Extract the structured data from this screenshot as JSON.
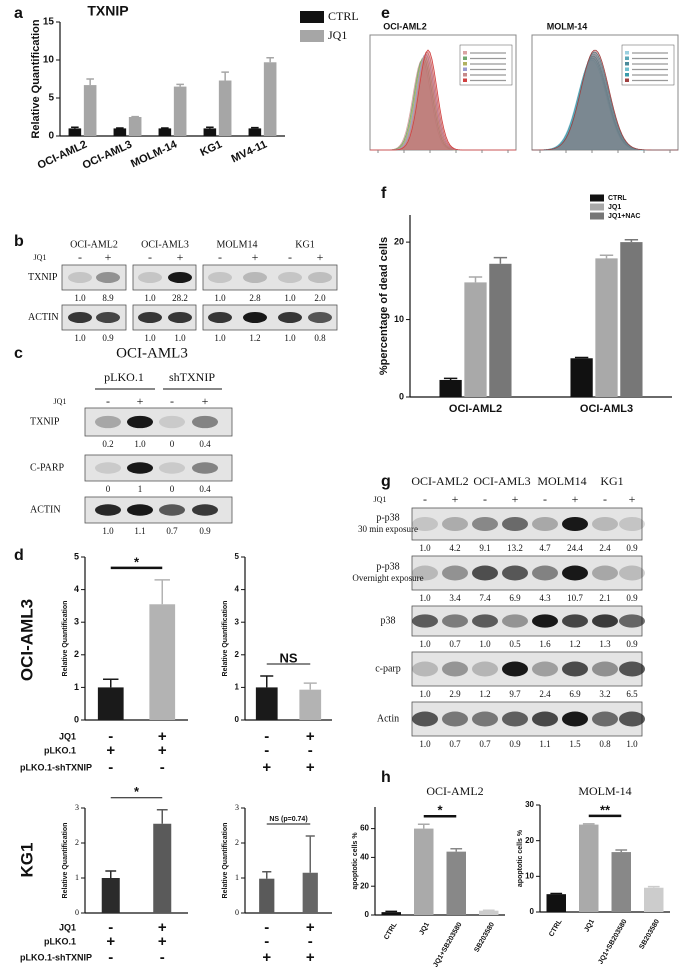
{
  "panel_labels": [
    "a",
    "b",
    "c",
    "d",
    "e",
    "f",
    "g",
    "h"
  ],
  "chart_data": [
    {
      "type": "bar",
      "title": "TXNIP",
      "y_label": "Relative Quantification",
      "categories": [
        "OCI-AML2",
        "OCI-AML3",
        "MOLM-14",
        "KG1",
        "MV4-11"
      ],
      "series": [
        {
          "name": "CTRL",
          "color": "#111111",
          "values": [
            1,
            1,
            1,
            1,
            1
          ],
          "errors": [
            0.15,
            0.05,
            0.05,
            0.15,
            0.1
          ]
        },
        {
          "name": "JQ1",
          "color": "#a6a6a6",
          "values": [
            6.7,
            2.5,
            6.5,
            7.3,
            9.7
          ],
          "errors": [
            0.8,
            0.05,
            0.3,
            1.1,
            0.6
          ]
        }
      ],
      "ylim": [
        0,
        15
      ],
      "yticks": [
        0,
        5,
        10,
        15
      ],
      "legend": "outside-right"
    },
    {
      "type": "bar",
      "y_label": "%percentage of dead cells",
      "categories": [
        "OCI-AML2",
        "OCI-AML3"
      ],
      "series": [
        {
          "name": "CTRL",
          "color": "#111111",
          "values": [
            2.2,
            5.0
          ],
          "errors": [
            0.2,
            0.1
          ]
        },
        {
          "name": "JQ1",
          "color": "#a9a9a9",
          "values": [
            14.8,
            17.9
          ],
          "errors": [
            0.7,
            0.4
          ]
        },
        {
          "name": "JQ1+NAC",
          "color": "#777777",
          "values": [
            17.2,
            20.0
          ],
          "errors": [
            0.8,
            0.3
          ]
        }
      ],
      "ylim": [
        0,
        23.5
      ],
      "yticks": [
        0,
        10,
        20
      ],
      "legend": "top-right"
    },
    {
      "type": "bar",
      "y_label": "Relative Quantification",
      "categories": [
        null,
        null
      ],
      "values": [
        1.0,
        3.55
      ],
      "errors": [
        0.25,
        0.75
      ],
      "colors": [
        "#1a1a1a",
        "#b3b3b3"
      ],
      "ylim": [
        0,
        5
      ],
      "yticks": [
        0,
        1,
        2,
        3,
        4,
        5
      ],
      "annotation": "*"
    },
    {
      "type": "bar",
      "y_label": "Relative Quantification",
      "categories": [
        null,
        null
      ],
      "values": [
        1.0,
        0.93
      ],
      "errors": [
        0.35,
        0.2
      ],
      "colors": [
        "#1a1a1a",
        "#b3b3b3"
      ],
      "ylim": [
        0,
        5
      ],
      "yticks": [
        0,
        1,
        2,
        3,
        4,
        5
      ],
      "annotation": "NS"
    },
    {
      "type": "bar",
      "y_label": "Relative Quantification",
      "categories": [
        null,
        null
      ],
      "values": [
        1.0,
        2.55
      ],
      "errors": [
        0.2,
        0.4
      ],
      "colors": [
        "#2b2b2b",
        "#5a5a5a"
      ],
      "ylim": [
        0,
        3
      ],
      "yticks": [
        0,
        1,
        2,
        3
      ],
      "annotation": "*"
    },
    {
      "type": "bar",
      "y_label": "Relative Quantification",
      "categories": [
        null,
        null
      ],
      "values": [
        0.98,
        1.15
      ],
      "errors": [
        0.2,
        1.05
      ],
      "colors": [
        "#5a5a5a",
        "#666666"
      ],
      "ylim": [
        0,
        3
      ],
      "yticks": [
        0,
        1,
        2,
        3
      ],
      "annotation": "NS (p=0.74)"
    },
    {
      "type": "bar",
      "title": "OCI-AML2",
      "y_label": "apoptotic cells %",
      "categories": [
        "CTRL",
        "JQ1",
        "JQ1+SB203580",
        "SB203580"
      ],
      "values": [
        2,
        60,
        44,
        3
      ],
      "errors": [
        0.5,
        3,
        2,
        0.3
      ],
      "colors": [
        "#111111",
        "#aaaaaa",
        "#888888",
        "#cccccc"
      ],
      "ylim": [
        0,
        75
      ],
      "yticks": [
        0,
        20,
        40,
        60
      ],
      "annotation": "*"
    },
    {
      "type": "bar",
      "title": "MOLM-14",
      "y_label": "apoptotic cells %",
      "categories": [
        "CTRL",
        "JQ1",
        "JQ1+SB203580",
        "SB203580"
      ],
      "values": [
        5,
        24.5,
        16.8,
        6.8
      ],
      "errors": [
        0.2,
        0.2,
        0.6,
        0.3
      ],
      "colors": [
        "#111111",
        "#aaaaaa",
        "#888888",
        "#cccccc"
      ],
      "ylim": [
        0,
        30
      ],
      "yticks": [
        0,
        10,
        20,
        30
      ],
      "annotation": "**"
    }
  ],
  "panel_d": {
    "row_labels": [
      "OCI-AML3",
      "KG1"
    ],
    "treatment_labels": [
      "JQ1",
      "pLKO.1",
      "pLKO.1-shTXNIP"
    ],
    "signs": [
      [
        [
          "-",
          "+"
        ],
        [
          "+",
          "+"
        ],
        [
          "-",
          "-"
        ]
      ],
      [
        [
          "-",
          "+"
        ],
        [
          "-",
          "-"
        ],
        [
          "+",
          "+"
        ]
      ],
      [
        [
          "-",
          "+"
        ],
        [
          "+",
          "+"
        ],
        [
          "-",
          "-"
        ]
      ],
      [
        [
          "-",
          "+"
        ],
        [
          "-",
          "-"
        ],
        [
          "+",
          "+"
        ]
      ]
    ]
  },
  "panel_e": {
    "titles": [
      "OCI-AML2",
      "MOLM-14"
    ]
  },
  "blots": [
    {
      "cell_lines": [
        "OCI-AML2",
        "OCI-AML3",
        "MOLM14",
        "KG1"
      ],
      "treatment": "JQ1",
      "signs": [
        "-",
        "+",
        "-",
        "+",
        "-",
        "+",
        "-",
        "+"
      ],
      "rows": [
        {
          "name": [
            "TXNIP"
          ],
          "quant": [
            "1.0",
            "8.9",
            "1.0",
            "28.2",
            "1.0",
            "2.8",
            "1.0",
            "2.0"
          ]
        },
        {
          "name": [
            "ACTIN"
          ],
          "quant": [
            "1.0",
            "0.9",
            "1.0",
            "1.0",
            "1.0",
            "1.2",
            "1.0",
            "0.8"
          ]
        }
      ]
    },
    {
      "title": "OCI-AML3",
      "groups": [
        "pLKO.1",
        "shTXNIP"
      ],
      "treatment": "JQ1",
      "signs": [
        "-",
        "+",
        "-",
        "+"
      ],
      "rows": [
        {
          "name": [
            "TXNIP"
          ],
          "quant": [
            "0.2",
            "1.0",
            "0",
            "0.4"
          ]
        },
        {
          "name": [
            "C-PARP"
          ],
          "quant": [
            "0",
            "1",
            "0",
            "0.4"
          ]
        },
        {
          "name": [
            "ACTIN"
          ],
          "quant": [
            "1.0",
            "1.1",
            "0.7",
            "0.9"
          ]
        }
      ]
    },
    {
      "cell_lines": [
        "OCI-AML2",
        "OCI-AML3",
        "MOLM14",
        "KG1"
      ],
      "treatment": "JQ1",
      "signs": [
        "-",
        "+",
        "-",
        "+",
        "-",
        "+",
        "-",
        "+"
      ],
      "rows": [
        {
          "name": [
            "p-p38",
            "30 min exposure"
          ],
          "quant": [
            "1.0",
            "4.2",
            "9.1",
            "13.2",
            "4.7",
            "24.4",
            "2.4",
            "0.9"
          ]
        },
        {
          "name": [
            "p-p38",
            "Overnight exposure"
          ],
          "quant": [
            "1.0",
            "3.4",
            "7.4",
            "6.9",
            "4.3",
            "10.7",
            "2.1",
            "0.9"
          ]
        },
        {
          "name": [
            "p38"
          ],
          "quant": [
            "1.0",
            "0.7",
            "1.0",
            "0.5",
            "1.6",
            "1.2",
            "1.3",
            "0.9"
          ]
        },
        {
          "name": [
            "c-parp"
          ],
          "quant": [
            "1.0",
            "2.9",
            "1.2",
            "9.7",
            "2.4",
            "6.9",
            "3.2",
            "6.5"
          ]
        },
        {
          "name": [
            "Actin"
          ],
          "quant": [
            "1.0",
            "0.7",
            "0.7",
            "0.9",
            "1.1",
            "1.5",
            "0.8",
            "1.0"
          ]
        }
      ]
    }
  ]
}
